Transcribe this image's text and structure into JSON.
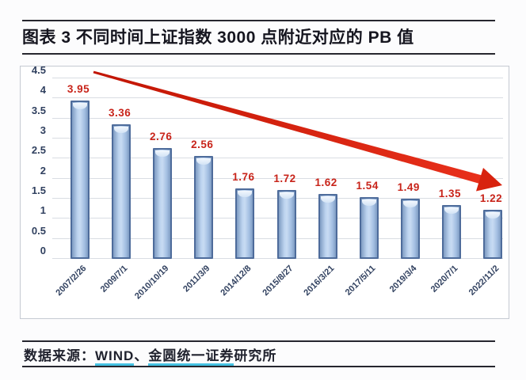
{
  "figure": {
    "title": "图表 3  不同时间上证指数 3000 点附近对应的 PB 值"
  },
  "chart_data": {
    "type": "bar",
    "title": "不同时间上证指数3000点附近对应的PB值",
    "categories": [
      "2007/2/26",
      "2009/7/1",
      "2010/10/19",
      "2011/3/9",
      "2014/12/8",
      "2015/8/27",
      "2016/3/21",
      "2017/5/11",
      "2019/3/4",
      "2020/7/1",
      "2022/11/2"
    ],
    "values": [
      3.95,
      3.36,
      2.76,
      2.56,
      1.76,
      1.72,
      1.62,
      1.54,
      1.49,
      1.35,
      1.22
    ],
    "value_labels": [
      "3.95",
      "3.36",
      "2.76",
      "2.56",
      "1.76",
      "1.72",
      "1.62",
      "1.54",
      "1.49",
      "1.35",
      "1.22"
    ],
    "xlabel": "",
    "ylabel": "",
    "ylim": [
      0,
      4.5
    ],
    "ytick_step": 0.5,
    "yticks": [
      "0",
      "0.5",
      "1",
      "1.5",
      "2",
      "2.5",
      "3",
      "3.5",
      "4",
      "4.5"
    ],
    "grid": true,
    "legend": "none",
    "bar_fill_color": "#aac6e6",
    "bar_border_color": "#4e6c9b",
    "value_label_color": "#c8241a",
    "annotation": {
      "type": "arrow",
      "color": "#d6210f",
      "direction": "down-right",
      "meaning": "declining PB trend"
    }
  },
  "footer": {
    "prefix": "数据来源：",
    "sources": [
      {
        "text": "WIND",
        "underline": true
      },
      {
        "text": "、",
        "underline": false
      },
      {
        "text": "金圆统一",
        "underline": true
      },
      {
        "text": "证券",
        "underline": true
      },
      {
        "text": "研究所",
        "underline": false
      }
    ]
  },
  "colors": {
    "rule": "#26262e",
    "gridline": "#d9dde3",
    "axis_text": "#30405f",
    "underline": "#45c2e2"
  }
}
